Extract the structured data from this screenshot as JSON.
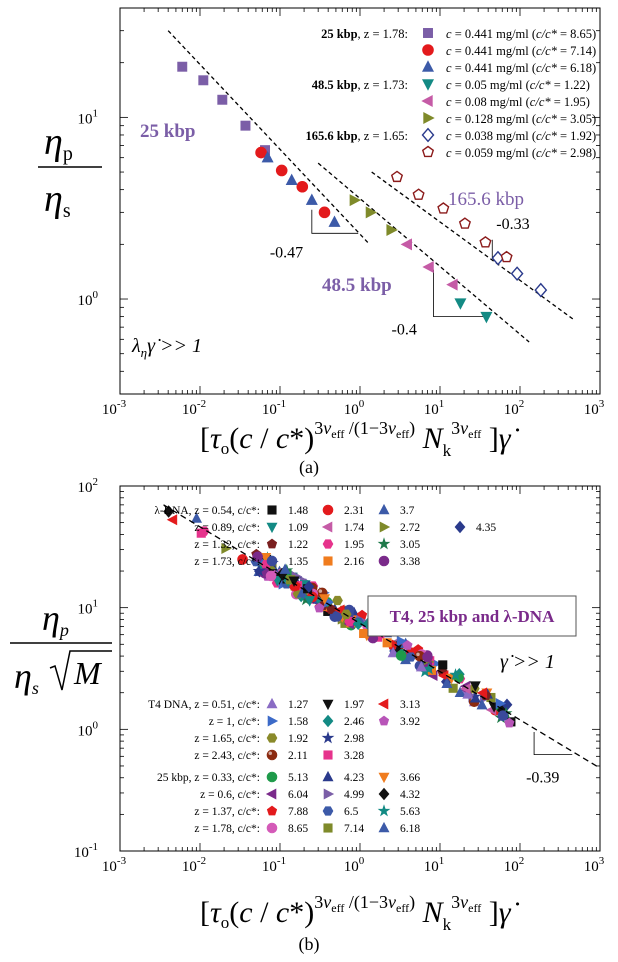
{
  "figure": {
    "panel_a_caption": "(a)",
    "panel_b_caption": "(b)"
  },
  "chart_data": [
    {
      "type": "scatter",
      "panel": "a",
      "xscale": "log",
      "yscale": "log",
      "xlim": [
        0.001,
        1000
      ],
      "ylim": [
        0.3,
        40
      ],
      "xticks": [
        0.001,
        0.01,
        0.1,
        1,
        10,
        100,
        1000
      ],
      "xtick_labels": [
        [
          "10",
          "-3"
        ],
        [
          "10",
          "-2"
        ],
        [
          "10",
          "-1"
        ],
        [
          "10",
          "0"
        ],
        [
          "10",
          "1"
        ],
        [
          "10",
          "2"
        ],
        [
          "10",
          "3"
        ]
      ],
      "yticks": [
        1,
        10
      ],
      "ytick_labels": [
        [
          "10",
          "0"
        ],
        [
          "10",
          "1"
        ]
      ],
      "ylabel": {
        "num": "η",
        "num_sub": "p",
        "den": "η",
        "den_sub": "s"
      },
      "xlabel": "[τo(c / c*)^(3ν_eff /(1−3ν_eff)) N_k^(3ν_eff)]γ̇",
      "legend_groups": [
        {
          "label": "25 kbp",
          "z": "z = 1.78:"
        },
        {
          "label": "48.5 kbp",
          "z": "z = 1.73:"
        },
        {
          "label": "165.6 kbp",
          "z": "z = 1.65:"
        }
      ],
      "series": [
        {
          "name": "c = 0.441 mg/ml (c/c* = 8.65)",
          "marker": "square",
          "color": "#7b5ea7",
          "filled": true,
          "x": [
            0.006,
            0.011,
            0.019,
            0.037,
            0.065
          ],
          "y": [
            19,
            16,
            12.5,
            9,
            6.6
          ]
        },
        {
          "name": "c = 0.441 mg/ml (c/c* = 7.14)",
          "marker": "circle",
          "color": "#e31a1c",
          "filled": true,
          "x": [
            0.058,
            0.105,
            0.19,
            0.36
          ],
          "y": [
            6.4,
            5.1,
            4.15,
            3.0
          ]
        },
        {
          "name": "c = 0.441 mg/ml (c/c* = 6.18)",
          "marker": "triangle-up",
          "color": "#3c5aa8",
          "filled": true,
          "x": [
            0.07,
            0.14,
            0.25,
            0.48
          ],
          "y": [
            6.0,
            4.5,
            3.5,
            2.65
          ]
        },
        {
          "name": "c = 0.05 mg/ml (c/c* = 1.22)",
          "marker": "triangle-down",
          "color": "#138a84",
          "filled": true,
          "x": [
            18,
            38
          ],
          "y": [
            0.95,
            0.8
          ]
        },
        {
          "name": "c = 0.08 mg/ml (c/c* = 1.95)",
          "marker": "triangle-left",
          "color": "#c55ba6",
          "filled": true,
          "x": [
            3.9,
            7.3,
            14.5
          ],
          "y": [
            2.0,
            1.5,
            1.2
          ]
        },
        {
          "name": "c = 0.128 mg/ml (c/c* = 3.05)",
          "marker": "triangle-right",
          "color": "#7f8a2a",
          "filled": true,
          "x": [
            0.85,
            1.35,
            2.45
          ],
          "y": [
            3.5,
            3.0,
            2.4
          ]
        },
        {
          "name": "c = 0.038 mg/ml (c/c* = 1.92)",
          "marker": "diamond",
          "color": "#2a3a8c",
          "filled": false,
          "x": [
            53,
            92,
            182
          ],
          "y": [
            1.68,
            1.38,
            1.12
          ]
        },
        {
          "name": "c = 0.059 mg/ml (c/c* = 2.98)",
          "marker": "pentagon",
          "color": "#8b1a1a",
          "filled": false,
          "x": [
            2.9,
            5.4,
            11,
            20.5,
            37,
            68
          ],
          "y": [
            4.7,
            3.75,
            3.15,
            2.6,
            2.05,
            1.7
          ]
        }
      ],
      "fit_lines": [
        {
          "x": [
            0.004,
            1.25
          ],
          "y": [
            30,
            2.05
          ]
        },
        {
          "x": [
            0.3,
            130
          ],
          "y": [
            5.6,
            0.58
          ]
        },
        {
          "x": [
            1.4,
            470
          ],
          "y": [
            5.0,
            0.77
          ]
        }
      ],
      "slopes": [
        {
          "label": "-0.47",
          "x1": 0.25,
          "x2": 0.95,
          "y1": 3.1,
          "y2": 2.3
        },
        {
          "label": "-0.4",
          "x1": 8.3,
          "x2": 40,
          "y1": 1.45,
          "y2": 0.8
        },
        {
          "label": "-0.33",
          "x1": 45,
          "x2": 68,
          "y1": 2.12,
          "y2": 1.7
        }
      ],
      "annotations": [
        "25 kbp",
        "48.5 kbp",
        "165.6 kbp",
        "λ_η γ̇ >> 1"
      ]
    },
    {
      "type": "scatter",
      "panel": "b",
      "xscale": "log",
      "yscale": "log",
      "xlim": [
        0.001,
        1000
      ],
      "ylim": [
        0.1,
        100
      ],
      "xticks": [
        0.001,
        0.01,
        0.1,
        1,
        10,
        100,
        1000
      ],
      "xtick_labels": [
        [
          "10",
          "-3"
        ],
        [
          "10",
          "-2"
        ],
        [
          "10",
          "-1"
        ],
        [
          "10",
          "0"
        ],
        [
          "10",
          "1"
        ],
        [
          "10",
          "2"
        ],
        [
          "10",
          "3"
        ]
      ],
      "yticks": [
        0.1,
        1,
        10,
        100
      ],
      "ytick_labels": [
        [
          "10",
          "-1"
        ],
        [
          "10",
          "0"
        ],
        [
          "10",
          "1"
        ],
        [
          "10",
          "2"
        ]
      ],
      "ylabel": {
        "num": "η",
        "num_sub": "p",
        "den": "η",
        "den_sub": "s",
        "den_sqrt": "M"
      },
      "xlabel": "[τo(c / c*)^(3ν_eff /(1−3ν_eff)) N_k^(3ν_eff)]γ̇",
      "title_box": "T4, 25 kbp and λ-DNA",
      "annotations": [
        "γ̇ >> 1"
      ],
      "fit_line": {
        "x": [
          0.0035,
          1000
        ],
        "y": [
          70,
          0.48
        ]
      },
      "slope": {
        "label": "-0.39",
        "x1": 150,
        "x2": 450,
        "y1": 0.95,
        "y2": 0.62
      },
      "legends": [
        {
          "rows": [
            {
              "text": "λ-DNA, z = 0.54, c/c*:",
              "entries": [
                [
                  "square",
                  "#111111",
                  "1.48"
                ],
                [
                  "circle",
                  "#e31a1c",
                  "2.31"
                ],
                [
                  "triangle-up",
                  "#3c5aa8",
                  "3.7"
                ]
              ]
            },
            {
              "text": "z = 0.89, c/c*:",
              "entries": [
                [
                  "triangle-down",
                  "#138a84",
                  "1.09"
                ],
                [
                  "triangle-left",
                  "#c55ba6",
                  "1.74"
                ],
                [
                  "triangle-right",
                  "#7f8a2a",
                  "2.72"
                ],
                [
                  "diamond",
                  "#2a3a8c",
                  "4.35"
                ]
              ]
            },
            {
              "text": "z = 1.32, c/c*:",
              "entries": [
                [
                  "pentagon",
                  "#7a1f1f",
                  "1.22"
                ],
                [
                  "hexagon",
                  "#e6338c",
                  "1.95"
                ],
                [
                  "star",
                  "#1e7a4a",
                  "3.05"
                ]
              ]
            },
            {
              "text": "z = 1.73, c/c*:",
              "entries": [
                [
                  "circle",
                  "#3a4a9c",
                  "1.35"
                ],
                [
                  "square",
                  "#f07c1e",
                  "2.16"
                ],
                [
                  "circle",
                  "#7a2a8a",
                  "3.38"
                ]
              ]
            }
          ]
        },
        {
          "rows": [
            {
              "text": "T4 DNA, z = 0.51, c/c*:",
              "entries": [
                [
                  "triangle-up",
                  "#8a6cc4",
                  "1.27"
                ],
                [
                  "triangle-down",
                  "#111111",
                  "1.97"
                ],
                [
                  "triangle-left",
                  "#e31a1c",
                  "3.13"
                ]
              ]
            },
            {
              "text": "z = 1,      c/c*:",
              "entries": [
                [
                  "triangle-right",
                  "#3c6ac8",
                  "1.58"
                ],
                [
                  "diamond",
                  "#138a84",
                  "2.46"
                ],
                [
                  "pentagon",
                  "#b855b8",
                  "3.92"
                ]
              ]
            },
            {
              "text": "z = 1.65, c/c*:",
              "entries": [
                [
                  "hexagon",
                  "#8a8a2a",
                  "1.92"
                ],
                [
                  "star",
                  "#2a3a8c",
                  "2.98"
                ]
              ]
            },
            {
              "text": "z = 2.43, c/c*:",
              "entries": [
                [
                  "circle-shaded",
                  "#8b2a10",
                  "2.11"
                ],
                [
                  "square",
                  "#e6338c",
                  "3.28"
                ]
              ]
            }
          ]
        },
        {
          "rows": [
            {
              "text": "25 kbp, z = 0.33, c/c*:",
              "entries": [
                [
                  "circle",
                  "#1e9a4a",
                  "5.13"
                ],
                [
                  "triangle-up",
                  "#2a3a8c",
                  "4.23"
                ],
                [
                  "triangle-down",
                  "#f07c1e",
                  "3.66"
                ]
              ]
            },
            {
              "text": "z = 0.6,   c/c*:",
              "entries": [
                [
                  "triangle-left",
                  "#7a2a8a",
                  "6.04"
                ],
                [
                  "triangle-right",
                  "#7b5ea7",
                  "4.99"
                ],
                [
                  "diamond",
                  "#111111",
                  "4.32"
                ]
              ]
            },
            {
              "text": "z = 1.37, c/c*:",
              "entries": [
                [
                  "pentagon",
                  "#e31a1c",
                  "7.88"
                ],
                [
                  "hexagon",
                  "#3c5aa8",
                  "6.5"
                ],
                [
                  "star",
                  "#138a84",
                  "5.63"
                ]
              ]
            },
            {
              "text": "z = 1.78, c/c*:",
              "entries": [
                [
                  "circle",
                  "#d45ab8",
                  "8.65"
                ],
                [
                  "square",
                  "#7f8a2a",
                  "7.14"
                ],
                [
                  "triangle-up",
                  "#3c5aa8",
                  "6.18"
                ]
              ]
            }
          ]
        }
      ]
    }
  ]
}
